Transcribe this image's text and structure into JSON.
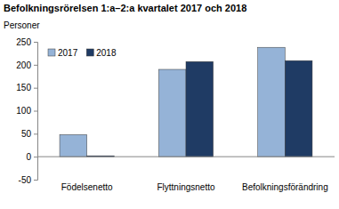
{
  "chart_data": {
    "type": "bar",
    "title": "Befolkningsrörelsen 1:a–2:a kvartalet 2017 och 2018",
    "y_label": "Personer",
    "categories": [
      "Födelsenetto",
      "Flyttningsnetto",
      "Befolkningsförändring"
    ],
    "series": [
      {
        "name": "2017",
        "color": "#95b3d7",
        "values": [
          48,
          190,
          238
        ]
      },
      {
        "name": "2018",
        "color": "#1f3b64",
        "values": [
          2,
          207,
          209
        ]
      }
    ],
    "ylim": [
      -50,
      250
    ],
    "yticks": [
      -50,
      0,
      50,
      100,
      150,
      200,
      250
    ],
    "grid": false,
    "legend": "top-left"
  }
}
